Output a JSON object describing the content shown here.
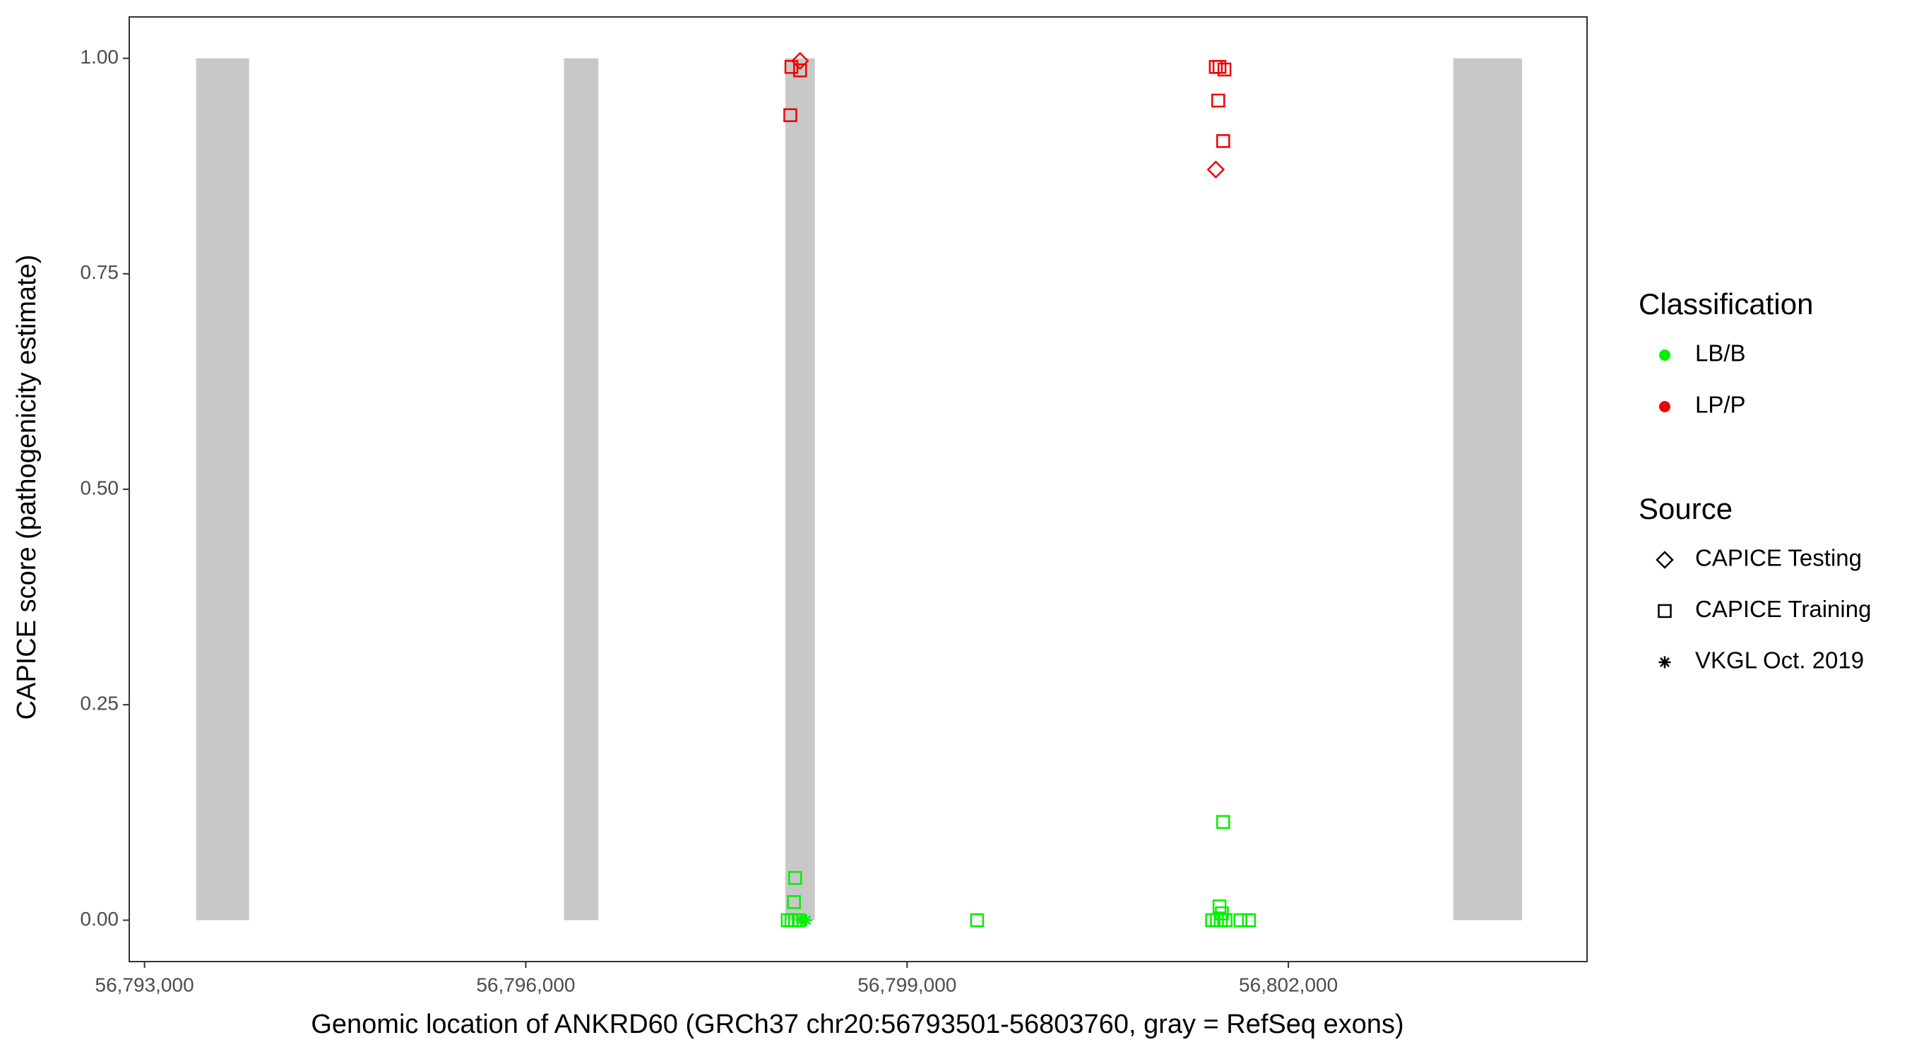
{
  "chart_data": {
    "type": "scatter",
    "x_label": "Genomic location of ANKRD60 (GRCh37 chr20:56793501-56803760, gray = RefSeq exons)",
    "y_label": "CAPICE score (pathogenicity estimate)",
    "xlim": [
      56792880,
      56804350
    ],
    "ylim": [
      -0.048,
      1.048
    ],
    "xticks": [
      {
        "value": 56793000,
        "label": "56,793,000"
      },
      {
        "value": 56796000,
        "label": "56,796,000"
      },
      {
        "value": 56799000,
        "label": "56,799,000"
      },
      {
        "value": 56802000,
        "label": "56,802,000"
      }
    ],
    "yticks": [
      {
        "value": 0,
        "label": "0.00"
      },
      {
        "value": 0.25,
        "label": "0.25"
      },
      {
        "value": 0.5,
        "label": "0.50"
      },
      {
        "value": 0.75,
        "label": "0.75"
      },
      {
        "value": 1,
        "label": "1.00"
      }
    ],
    "exon_color": "#c8c8c8",
    "exon_y": [
      0,
      1
    ],
    "exons": [
      [
        56793406,
        56793823
      ],
      [
        56796300,
        56796571
      ],
      [
        56798042,
        56798274
      ],
      [
        56803297,
        56803839
      ]
    ],
    "legend_classification": {
      "title": "Classification",
      "items": [
        {
          "name": "LB/B",
          "color": "#00ee00"
        },
        {
          "name": "LP/P",
          "color": "#ee0000"
        }
      ]
    },
    "legend_source": {
      "title": "Source",
      "items": [
        {
          "name": "CAPICE Testing",
          "shape": "diamond"
        },
        {
          "name": "CAPICE Training",
          "shape": "square"
        },
        {
          "name": "VKGL Oct. 2019",
          "shape": "asterisk"
        }
      ]
    },
    "series": [
      {
        "class": 1,
        "source": 1,
        "x": [
          56798090,
          56798158,
          56798081,
          56801429,
          56801458,
          56801497,
          56801448,
          56801487
        ],
        "values": [
          0.99,
          0.986,
          0.934,
          0.99,
          0.99,
          0.987,
          0.951,
          0.904
        ]
      },
      {
        "class": 1,
        "source": 0,
        "x": [
          56798158,
          56801429
        ],
        "values": [
          0.997,
          0.871
        ]
      },
      {
        "class": 0,
        "source": 1,
        "x": [
          56798119,
          56798110,
          56798061,
          56798090,
          56798119,
          56798148,
          56799551,
          56801487,
          56801458,
          56801400,
          56801438,
          56801468,
          56801506,
          56801622,
          56801690,
          56801477
        ],
        "values": [
          0.049,
          0.021,
          0,
          0,
          0,
          0,
          0,
          0.114,
          0.016,
          0,
          0,
          0,
          0,
          0,
          0,
          0.008
        ]
      },
      {
        "class": 0,
        "source": 2,
        "x": [
          56798168,
          56798207
        ],
        "values": [
          0,
          0
        ]
      }
    ]
  }
}
